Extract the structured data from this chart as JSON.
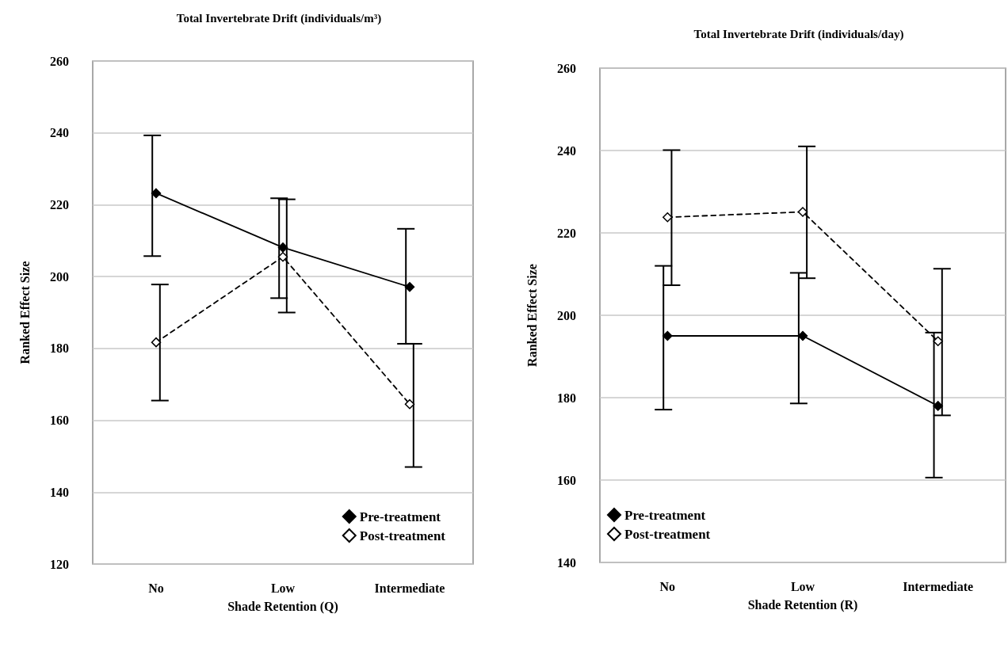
{
  "chart_data": [
    {
      "type": "line",
      "title": "Total Invertebrate Drift (individuals/m³)",
      "xlabel": "Shade Retention (Q)",
      "ylabel": "Ranked Effect Size",
      "categories": [
        "No",
        "Low",
        "Intermediate"
      ],
      "ylim": [
        120,
        260
      ],
      "yticks": [
        120,
        140,
        160,
        180,
        200,
        220,
        240,
        260
      ],
      "grid": "y",
      "legend": "bottom right",
      "marker": "diamond",
      "series": [
        {
          "name": "Pre-treatment",
          "color": "#000000",
          "line_style": "solid",
          "values": [
            223.2,
            208.1,
            197.1
          ],
          "errors": [
            [
              205.7,
              239.3
            ],
            [
              194.0,
              221.8
            ],
            [
              181.3,
              213.3
            ]
          ]
        },
        {
          "name": "Post-treatment",
          "color": "#000000",
          "line_style": "dashed",
          "values": [
            181.7,
            205.5,
            164.5
          ],
          "errors": [
            [
              165.5,
              197.8
            ],
            [
              190.0,
              221.5
            ],
            [
              147.0,
              181.3
            ]
          ]
        }
      ]
    },
    {
      "type": "line",
      "title": "Total Invertebrate Drift (individuals/day)",
      "xlabel": "Shade Retention (R)",
      "ylabel": "Ranked Effect Size",
      "categories": [
        "No",
        "Low",
        "Intermediate"
      ],
      "ylim": [
        140,
        260
      ],
      "yticks": [
        140,
        160,
        180,
        200,
        220,
        240,
        260
      ],
      "grid": "y",
      "legend": "bottom left",
      "marker": "diamond",
      "series": [
        {
          "name": "Pre-treatment",
          "color": "#000000",
          "line_style": "solid",
          "values": [
            195.0,
            195.0,
            178.0
          ],
          "errors": [
            [
              177.1,
              212.0
            ],
            [
              178.6,
              210.3
            ],
            [
              160.6,
              195.8
            ]
          ]
        },
        {
          "name": "Post-treatment",
          "color": "#000000",
          "line_style": "dashed",
          "values": [
            223.8,
            225.1,
            193.7
          ],
          "errors": [
            [
              207.3,
              240.1
            ],
            [
              209.0,
              241.0
            ],
            [
              175.7,
              211.3
            ]
          ]
        }
      ]
    }
  ]
}
